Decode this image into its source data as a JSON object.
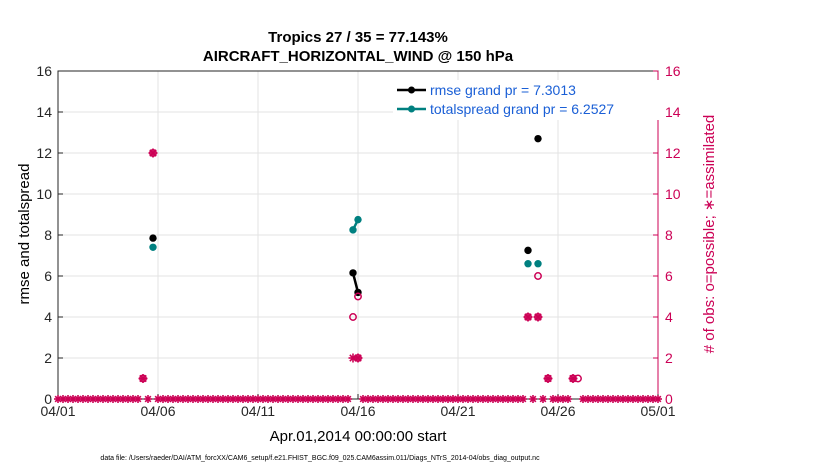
{
  "chart_data": {
    "type": "line",
    "title": "Tropics 27 / 35 = 77.143%",
    "subtitle": "AIRCRAFT_HORIZONTAL_WIND @ 150 hPa",
    "xlabel": "Apr.01,2014 00:00:00 start",
    "ylabel_left": "rmse and totalspread",
    "ylabel_right": "# of obs: o=possible; ∗=assimilated",
    "ylim": [
      0,
      16
    ],
    "xlim": [
      0,
      30
    ],
    "x_ticks": [
      {
        "day": 0,
        "label": "04/01"
      },
      {
        "day": 5,
        "label": "04/06"
      },
      {
        "day": 10,
        "label": "04/11"
      },
      {
        "day": 15,
        "label": "04/16"
      },
      {
        "day": 20,
        "label": "04/21"
      },
      {
        "day": 25,
        "label": "04/26"
      },
      {
        "day": 30,
        "label": "05/01"
      }
    ],
    "y_ticks": [
      0,
      2,
      4,
      6,
      8,
      10,
      12,
      14,
      16
    ],
    "grid": true,
    "legend_location": "top-right",
    "legend": [
      {
        "label": "rmse grand pr = 7.3013",
        "color": "#000000"
      },
      {
        "label": "totalspread grand pr = 6.2527",
        "color": "#008080"
      }
    ],
    "series": [
      {
        "name": "rmse",
        "color": "#000000",
        "points": [
          [
            4.75,
            7.85
          ],
          [
            14.75,
            6.15
          ],
          [
            15.0,
            5.2
          ],
          [
            23.5,
            7.25
          ],
          [
            24.0,
            12.7
          ]
        ],
        "line_segments": [
          [
            [
              14.75,
              6.15
            ],
            [
              15.0,
              5.2
            ]
          ]
        ]
      },
      {
        "name": "totalspread",
        "color": "#008080",
        "points": [
          [
            4.75,
            7.4
          ],
          [
            14.75,
            8.25
          ],
          [
            15.0,
            8.75
          ],
          [
            23.5,
            6.6
          ],
          [
            24.0,
            6.6
          ]
        ],
        "line_segments": [
          [
            [
              14.75,
              8.25
            ],
            [
              15.0,
              8.75
            ]
          ]
        ]
      },
      {
        "name": "obs_possible",
        "color": "#cc0055",
        "marker": "o",
        "points": [
          [
            4.25,
            1
          ],
          [
            4.75,
            12
          ],
          [
            14.75,
            4
          ],
          [
            15.0,
            5
          ],
          [
            15.0,
            2
          ],
          [
            23.5,
            4
          ],
          [
            24.0,
            6
          ],
          [
            24.0,
            4
          ],
          [
            24.5,
            1
          ],
          [
            25.75,
            1
          ],
          [
            26.0,
            1
          ]
        ]
      },
      {
        "name": "obs_assimilated",
        "color": "#cc0055",
        "marker": "*",
        "points": [
          [
            4.25,
            1
          ],
          [
            4.75,
            12
          ],
          [
            14.75,
            2
          ],
          [
            15.0,
            2
          ],
          [
            23.5,
            4
          ],
          [
            24.0,
            4
          ],
          [
            24.5,
            1
          ],
          [
            25.75,
            1
          ]
        ],
        "zero_days_assimilated": "all other 6-hourly times from 04/01 to 05/01 have 0 observations"
      }
    ],
    "footnote": "data file: /Users/raeder/DAI/ATM_forcXX/CAM6_setup/f.e21.FHIST_BGC.f09_025.CAM6assim.011/Diags_NTrS_2014-04/obs_diag_output.nc"
  }
}
